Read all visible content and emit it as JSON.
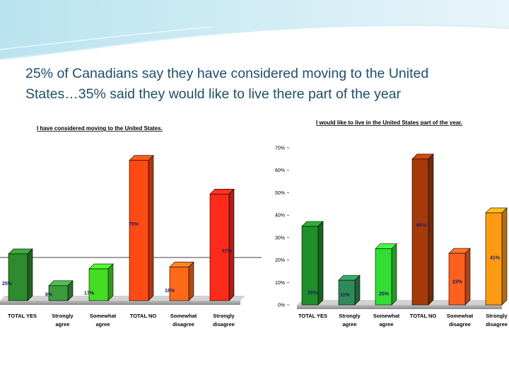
{
  "slide": {
    "title_line1": "25% of Canadians say they have considered moving to the United",
    "title_line2": "States…35% said they would like to live there part of the year",
    "title_color": "#1f4e6b"
  },
  "chart_data": [
    {
      "type": "bar",
      "title": "I have considered moving to the United States.",
      "categories": [
        "TOTAL YES",
        "Strongly agree",
        "Somewhat agree",
        "TOTAL NO",
        "Somewhat disagree",
        "Strongly disagree"
      ],
      "values": [
        25,
        8,
        17,
        75,
        18,
        57
      ],
      "value_labels": [
        "25%",
        "8%",
        "17%",
        "75%",
        "18%",
        "57%"
      ],
      "colors": [
        "#2e8b2e",
        "#3d9b3d",
        "#44dd22",
        "#ff4a14",
        "#ff6a1a",
        "#ff2a1a"
      ],
      "ylim": [
        0,
        90
      ]
    },
    {
      "type": "bar",
      "title": "I would like to live in the United States part of the year.",
      "categories": [
        "TOTAL YES",
        "Strongly agree",
        "Somewhat agree",
        "TOTAL NO",
        "Somewhat disagree",
        "Strongly disagree"
      ],
      "values": [
        35,
        11,
        25,
        65,
        23,
        41
      ],
      "value_labels": [
        "35%",
        "11%",
        "25%",
        "65%",
        "23%",
        "41%"
      ],
      "colors": [
        "#1f8f2a",
        "#2e8b57",
        "#33dd33",
        "#a63a0a",
        "#ff6020",
        "#ff9a14"
      ],
      "ylim": [
        0,
        70
      ],
      "yticks": [
        "0%",
        "10%",
        "20%",
        "30%",
        "40%",
        "50%",
        "60%",
        "70%"
      ]
    }
  ]
}
